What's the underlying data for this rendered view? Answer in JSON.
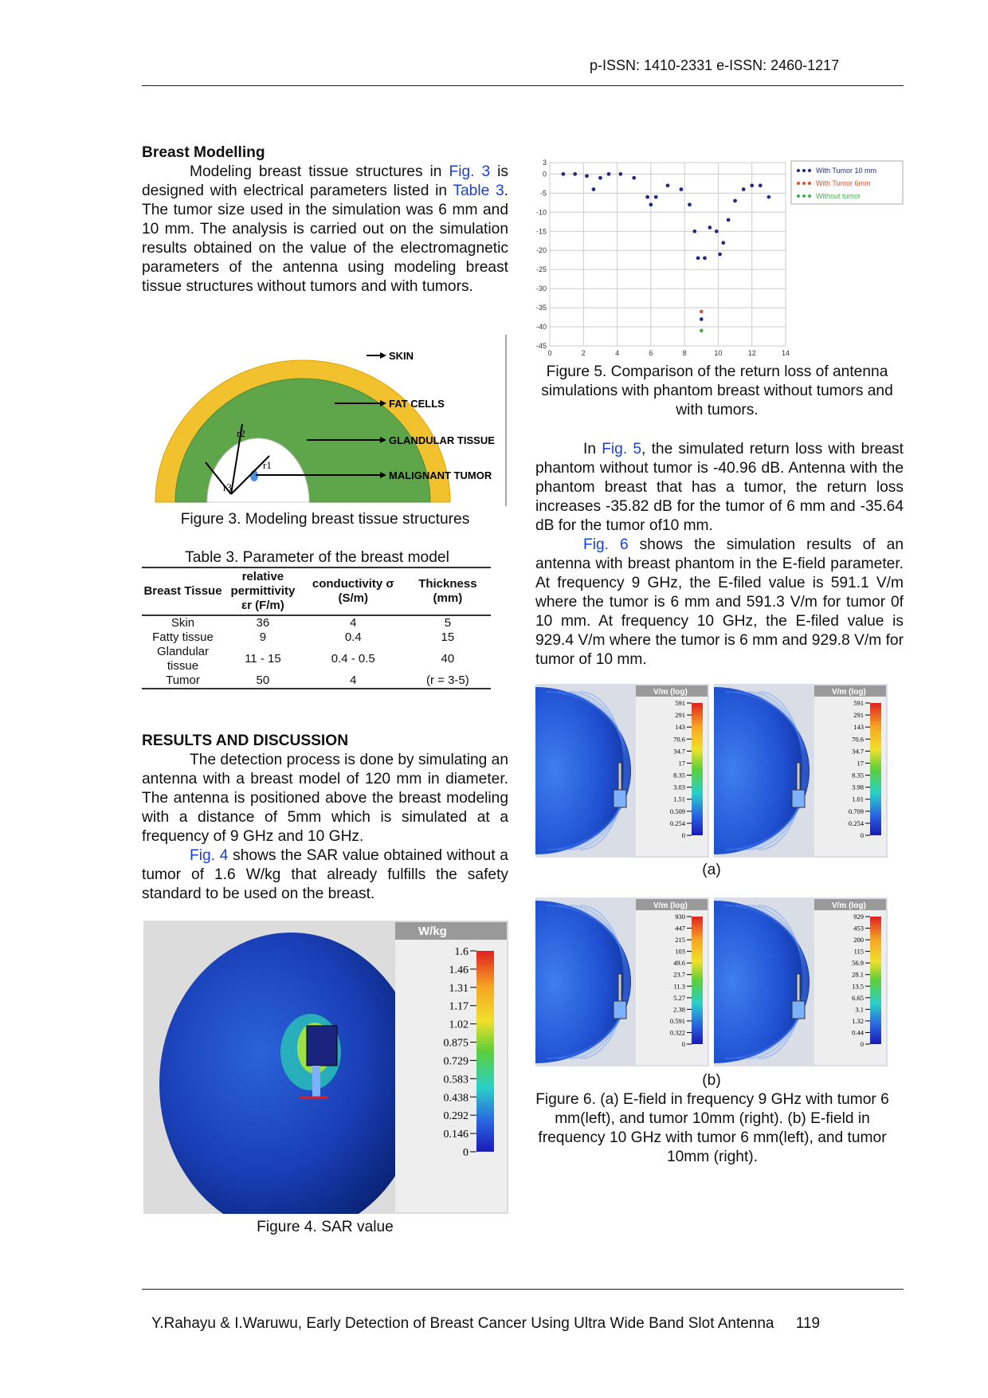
{
  "header": {
    "issn": "p-ISSN: 1410-2331  e-ISSN: 2460-1217"
  },
  "left": {
    "heading1": "Breast Modelling",
    "para1": {
      "a": "Modeling breast tissue structures in ",
      "fig3": "Fig. 3",
      "b": " is designed with electrical parameters listed in ",
      "table3": "Table 3",
      "c": ". The tumor size used in the simulation was 6 mm and 10 mm. The analysis is carried out on the simulation results obtained on the value of the electromagnetic parameters of the antenna using modeling breast tissue structures without tumors and with tumors."
    },
    "fig3": {
      "labels": [
        "SKIN",
        "FAT CELLS",
        "GLANDULAR TISSUE",
        "MALIGNANT TUMOR"
      ],
      "radii": [
        "r2",
        "r1",
        "r3"
      ],
      "caption": "Figure 3. Modeling breast tissue structures"
    },
    "table3": {
      "caption": "Table 3. Parameter of the breast model",
      "headers": [
        "Breast Tissue",
        "relative permittivity εr (F/m)",
        "conductivity σ (S/m)",
        "Thickness (mm)"
      ],
      "rows": [
        [
          "Skin",
          "36",
          "4",
          "5"
        ],
        [
          "Fatty tissue",
          "9",
          "0.4",
          "15"
        ],
        [
          "Glandular tissue",
          "11 - 15",
          "0.4 - 0.5",
          "40"
        ],
        [
          "Tumor",
          "50",
          "4",
          "(r = 3-5)"
        ]
      ]
    },
    "heading2": "RESULTS AND DISCUSSION",
    "para2": "The detection process is done by simulating an antenna with a breast model of  120 mm in diameter. The antenna is positioned above the breast modeling with a distance of 5mm which is simulated at a frequency of 9 GHz and 10 GHz.",
    "para3": {
      "fig4": "Fig. 4",
      "rest": " shows the SAR value obtained without a tumor of 1.6 W/kg that already fulfills the safety standard to be used on the breast."
    },
    "fig4": {
      "unit": "W/kg",
      "ticks": [
        "1.6",
        "1.46",
        "1.31",
        "1.17",
        "1.02",
        "0.875",
        "0.729",
        "0.583",
        "0.438",
        "0.292",
        "0.146",
        "0"
      ],
      "caption": "Figure 4. SAR value"
    }
  },
  "right": {
    "fig5caption": "Figure 5. Comparison of the return loss of antenna simulations with phantom breast without tumors and with tumors.",
    "para4": {
      "a": "In ",
      "fig5": "Fig. 5",
      "b": ", the simulated return loss with breast phantom without tumor is -40.96 dB. Antenna with the phantom breast that has a tumor, the return loss increases -35.82 dB for the tumor of 6 mm and -35.64 dB for the tumor of10 mm."
    },
    "para5": {
      "fig6": "Fig. 6",
      "rest": " shows the simulation results of an antenna with breast phantom in the E-field parameter. At frequency 9 GHz, the E-filed value is 591.1 V/m where the tumor is 6 mm and 591.3 V/m for tumor 0f 10 mm. At frequency 10 GHz, the E-filed value is 929.4 V/m where the tumor is 6 mm and 929.8 V/m for tumor of 10 mm."
    },
    "fig6": {
      "unit": "V/m (log)",
      "ticks_a_left": [
        "591",
        "291",
        "143",
        "70.6",
        "34.7",
        "17",
        "8.35",
        "3.03",
        "1.51",
        "0.509",
        "0.254",
        "0"
      ],
      "ticks_a_right": [
        "591",
        "291",
        "143",
        "70.6",
        "34.7",
        "17",
        "8.35",
        "3.98",
        "1.01",
        "0.709",
        "0.254",
        "0"
      ],
      "ticks_b_left": [
        "930",
        "447",
        "215",
        "103",
        "49.6",
        "23.7",
        "11.3",
        "5.27",
        "2.38",
        "0.591",
        "0.322",
        "0"
      ],
      "ticks_b_right": [
        "929",
        "453",
        "200",
        "115",
        "56.9",
        "28.1",
        "13.5",
        "6.65",
        "3.1",
        "1.32",
        "0.44",
        "0"
      ],
      "label_a": "(a)",
      "label_b": "(b)",
      "caption": "Figure 6. (a) E-field in frequency 9 GHz with tumor 6 mm(left), and tumor 10mm (right). (b) E-field in frequency 10 GHz with tumor 6 mm(left), and tumor 10mm (right)."
    }
  },
  "chart_data": {
    "type": "line",
    "title": "",
    "xlabel": "",
    "ylabel": "",
    "xlim": [
      0,
      14
    ],
    "ylim": [
      -45,
      3
    ],
    "x_ticks": [
      "0",
      "2",
      "4",
      "6",
      "8",
      "10",
      "12",
      "14"
    ],
    "y_ticks": [
      "3",
      "0",
      "-5",
      "-10",
      "-15",
      "-20",
      "-25",
      "-30",
      "-35",
      "-40",
      "-45"
    ],
    "legend_position": "top-right",
    "series": [
      {
        "name": "With Tumor 10 mm",
        "color": "#1f2a8a",
        "x": [
          0.8,
          1.5,
          2.2,
          2.6,
          3.0,
          3.5,
          4.2,
          5.0,
          5.8,
          6.0,
          6.3,
          7.0,
          7.8,
          8.3,
          8.6,
          8.8,
          9.0,
          9.2,
          9.5,
          9.9,
          10.1,
          10.3,
          10.6,
          11.0,
          11.5,
          12.0,
          12.5,
          13.0
        ],
        "y": [
          0,
          0,
          -0.5,
          -4,
          -1,
          0,
          0,
          -1,
          -6,
          -8,
          -6,
          -3,
          -4,
          -8,
          -15,
          -22,
          -38,
          -22,
          -14,
          -15,
          -21,
          -18,
          -12,
          -7,
          -4,
          -3,
          -3,
          -6
        ]
      },
      {
        "name": "With Tumor 6mm",
        "color": "#e0502a",
        "x": [
          0.8,
          1.5,
          2.2,
          2.6,
          3.0,
          3.5,
          4.2,
          5.0,
          5.8,
          6.0,
          6.3,
          7.0,
          7.8,
          8.3,
          8.6,
          8.8,
          9.0,
          9.2,
          9.5,
          9.9,
          10.1,
          10.3,
          10.6,
          11.0,
          11.5,
          12.0,
          12.5
        ],
        "y": [
          0,
          0,
          -0.5,
          -4,
          -1,
          0,
          0,
          -1,
          -6,
          -8,
          -6,
          -3,
          -4,
          -8,
          -15,
          -22,
          -36,
          -22,
          -14,
          -15,
          -21,
          -18,
          -12,
          -7,
          -4,
          -3,
          -3
        ]
      },
      {
        "name": "Without tumor",
        "color": "#3bb54a",
        "x": [
          0.8,
          1.5,
          2.2,
          2.6,
          3.0,
          3.5,
          4.2,
          5.0,
          5.8,
          6.0,
          6.3,
          7.0,
          7.8,
          8.3,
          8.6,
          8.8,
          9.0,
          9.2,
          9.5,
          9.9,
          10.1,
          10.3,
          10.6,
          11.0,
          11.5,
          12.0
        ],
        "y": [
          0,
          0,
          -0.5,
          -4,
          -1,
          0,
          0,
          -1,
          -6,
          -8,
          -6,
          -3,
          -4,
          -8,
          -15,
          -22,
          -41,
          -22,
          -14,
          -15,
          -21,
          -18,
          -12,
          -7,
          -4,
          -3
        ]
      }
    ]
  },
  "footer": {
    "text": "Y.Rahayu & I.Waruwu, Early Detection of Breast Cancer Using Ultra Wide Band Slot Antenna",
    "page": "119"
  }
}
